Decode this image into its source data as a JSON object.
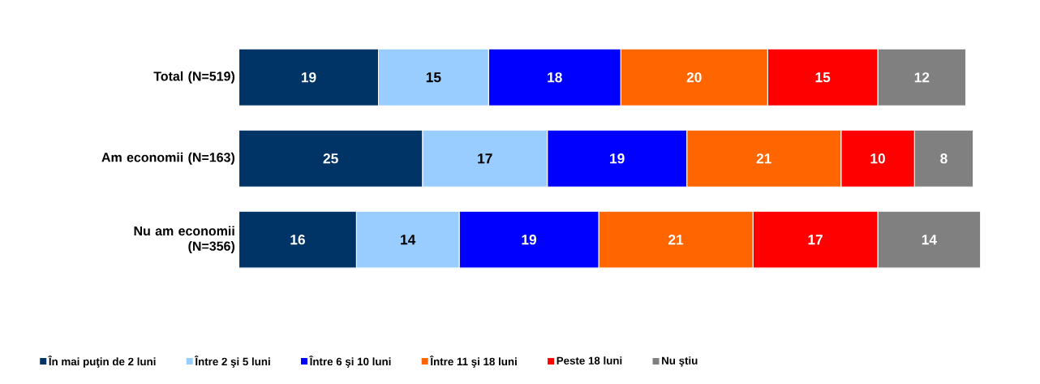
{
  "chart_data": {
    "type": "bar",
    "orientation": "horizontal",
    "stacked": true,
    "data_labels": true,
    "legend": "bottom",
    "grid": false,
    "categories": [
      "Total (N=519)",
      "Am economii (N=163)",
      "Nu am economii (N=356)"
    ],
    "series": [
      {
        "name": "În mai puţin de 2 luni",
        "color": "#003366",
        "values": [
          19,
          25,
          16
        ]
      },
      {
        "name": "Între 2 şi 5 luni",
        "color": "#99ccff",
        "values": [
          15,
          17,
          14
        ]
      },
      {
        "name": "Între 6 şi 10 luni",
        "color": "#0000ff",
        "values": [
          18,
          19,
          19
        ]
      },
      {
        "name": "Între 11 şi 18 luni",
        "color": "#ff6600",
        "values": [
          20,
          21,
          21
        ]
      },
      {
        "name": "Peste 18 luni",
        "color": "#ff0000",
        "values": [
          15,
          10,
          17
        ]
      },
      {
        "name": "Nu ştiu",
        "color": "#808080",
        "values": [
          12,
          8,
          14
        ]
      }
    ]
  }
}
